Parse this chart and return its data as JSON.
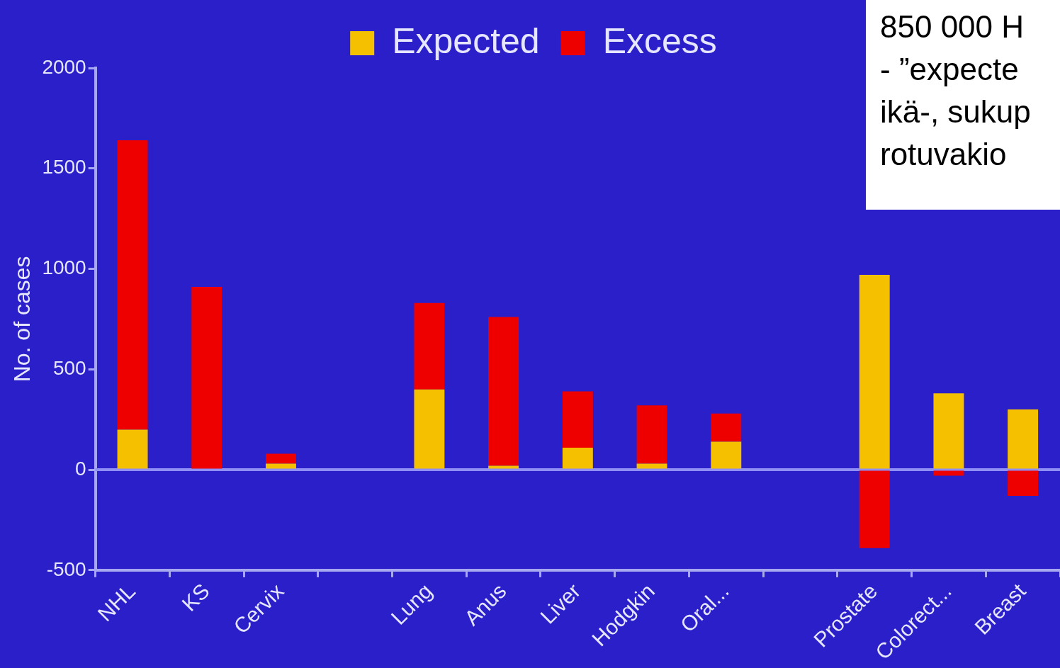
{
  "chart_data": {
    "type": "bar",
    "stacked": true,
    "ylabel": "No. of cases",
    "categories": [
      "NHL",
      "KS",
      "Cervix",
      null,
      "Lung",
      "Anus",
      "Liver",
      "Hodgkin",
      "Oral...",
      null,
      "Prostate",
      "Colorect...",
      "Breast"
    ],
    "series": [
      {
        "name": "Expected",
        "color": "#f5c000",
        "values": [
          200,
          0,
          30,
          null,
          400,
          20,
          110,
          30,
          140,
          null,
          970,
          380,
          300
        ]
      },
      {
        "name": "Excess",
        "color": "#ee0000",
        "values": [
          1440,
          910,
          50,
          null,
          430,
          740,
          280,
          290,
          140,
          null,
          -390,
          -30,
          -130
        ]
      }
    ],
    "ylim": [
      -500,
      2000
    ],
    "yticks": [
      -500,
      0,
      500,
      1000,
      1500,
      2000
    ],
    "ref_lines": [
      {
        "axis": "y",
        "value": 0,
        "color": "#8f8ff5"
      }
    ],
    "grid": false,
    "legend": "top",
    "annotations": [
      "850 000 H",
      "- ”expecte",
      "ikä-, sukup",
      "rotuvakio"
    ]
  }
}
